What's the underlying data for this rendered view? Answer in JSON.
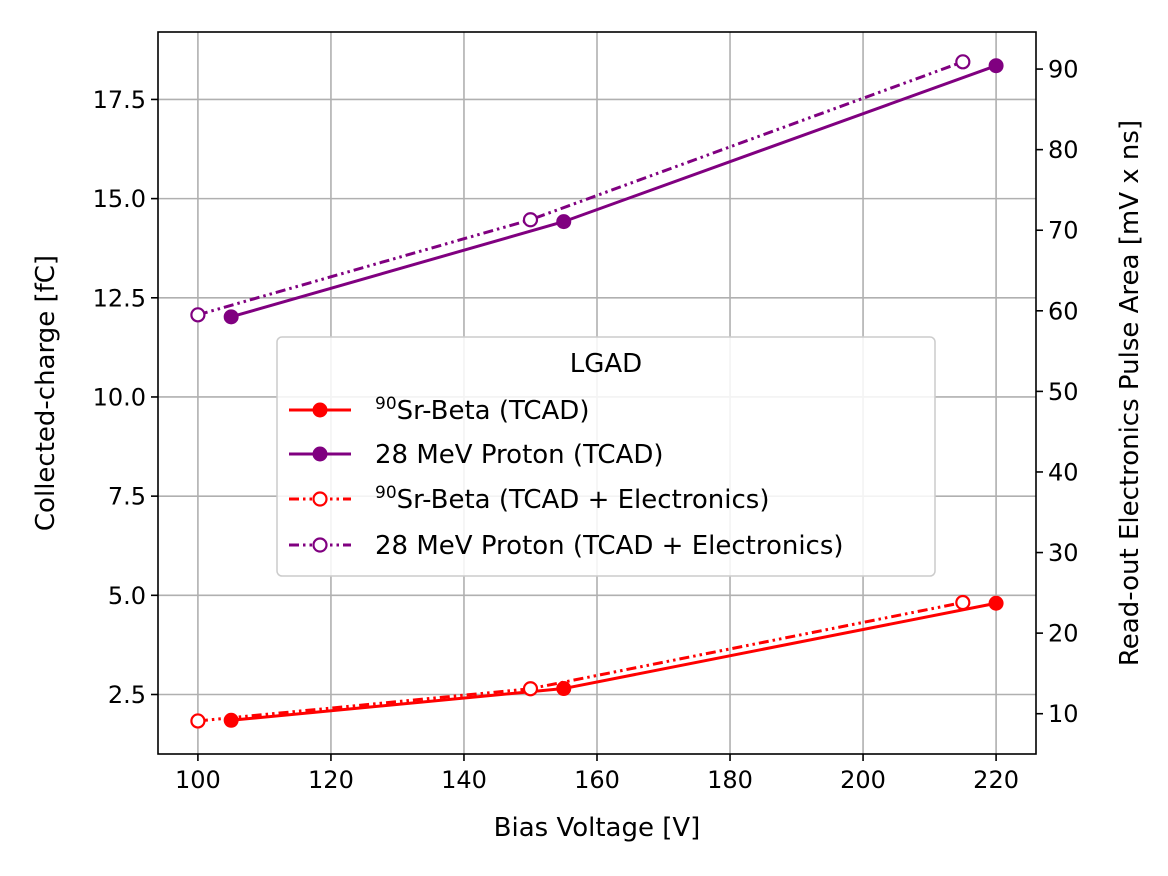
{
  "chart_data": {
    "type": "line",
    "xlabel": "Bias Voltage [V]",
    "ylabel": "Collected-charge [fC]",
    "y2label": "Read-out Electronics Pulse Area [mV x ns]",
    "xlim": [
      94,
      226
    ],
    "ylim": [
      1.0,
      19.2
    ],
    "y2lim": [
      5.0,
      94.6
    ],
    "xticks": [
      100,
      120,
      140,
      160,
      180,
      200,
      220
    ],
    "yticks": [
      2.5,
      5.0,
      7.5,
      10.0,
      12.5,
      15.0,
      17.5
    ],
    "y2ticks": [
      10,
      20,
      30,
      40,
      50,
      60,
      70,
      80,
      90
    ],
    "grid": true,
    "legend": {
      "title": "LGAD",
      "placement": "center-left",
      "entries": [
        {
          "prefix": "",
          "sup": "90",
          "text": "Sr-Beta (TCAD)"
        },
        {
          "prefix": "28 MeV Proton (TCAD)",
          "sup": "",
          "text": ""
        },
        {
          "prefix": "",
          "sup": "90",
          "text": "Sr-Beta (TCAD + Electronics)"
        },
        {
          "prefix": "28 MeV Proton (TCAD + Electronics)",
          "sup": "",
          "text": ""
        }
      ]
    },
    "series": [
      {
        "name": "90Sr-Beta (TCAD)",
        "axis": "left",
        "color": "#ff0000",
        "style": "solid",
        "marker": "filled",
        "x": [
          105,
          155,
          220
        ],
        "y": [
          1.85,
          2.65,
          4.8
        ]
      },
      {
        "name": "28 MeV Proton (TCAD)",
        "axis": "left",
        "color": "#800080",
        "style": "solid",
        "marker": "filled",
        "x": [
          105,
          155,
          220
        ],
        "y": [
          12.02,
          14.42,
          18.35
        ]
      },
      {
        "name": "90Sr-Beta (TCAD + Electronics)",
        "axis": "right",
        "color": "#ff0000",
        "style": "dashdotdot",
        "marker": "open",
        "x": [
          100,
          150,
          215
        ],
        "y": [
          9.1,
          13.1,
          23.8
        ]
      },
      {
        "name": "28 MeV Proton (TCAD + Electronics)",
        "axis": "right",
        "color": "#800080",
        "style": "dashdotdot",
        "marker": "open",
        "x": [
          100,
          150,
          215
        ],
        "y": [
          59.5,
          71.3,
          90.9
        ]
      }
    ]
  }
}
